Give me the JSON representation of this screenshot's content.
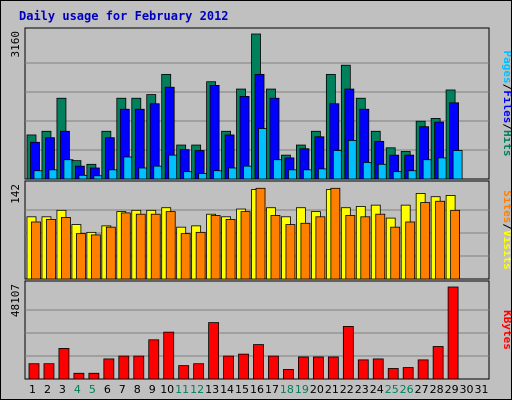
{
  "chart_data": {
    "type": "bar",
    "title": "Daily usage for February 2012",
    "categories": [
      "1",
      "2",
      "3",
      "4",
      "5",
      "6",
      "7",
      "8",
      "9",
      "10",
      "11",
      "12",
      "13",
      "14",
      "15",
      "16",
      "17",
      "18",
      "19",
      "20",
      "21",
      "22",
      "23",
      "24",
      "25",
      "26",
      "27",
      "28",
      "29",
      "30",
      "31"
    ],
    "weekend_days": [
      "4",
      "5",
      "11",
      "12",
      "18",
      "19",
      "25",
      "26"
    ],
    "panels": [
      {
        "name": "hits-files-pages",
        "ymax_label": "3160",
        "ylim": [
          0,
          3160
        ],
        "grid": true,
        "legend": [
          "Pages",
          "Files",
          "Hits"
        ],
        "series": [
          {
            "name": "Hits",
            "color": "#00805c",
            "values": [
              960,
              1040,
              1760,
              400,
              320,
              1040,
              1760,
              1760,
              1840,
              2280,
              740,
              740,
              2120,
              1040,
              1960,
              3160,
              1960,
              520,
              740,
              1040,
              2280,
              2480,
              1760,
              1040,
              680,
              600,
              1260,
              1320,
              1940,
              null,
              null
            ]
          },
          {
            "name": "Files",
            "color": "#0000ff",
            "values": [
              800,
              900,
              1040,
              280,
              240,
              900,
              1520,
              1520,
              1640,
              2000,
              640,
              620,
              2040,
              960,
              1800,
              2280,
              1760,
              460,
              660,
              920,
              1640,
              1960,
              1520,
              820,
              520,
              520,
              1140,
              1240,
              1660,
              null,
              null
            ]
          },
          {
            "name": "Pages",
            "color": "#00c0ff",
            "values": [
              180,
              200,
              420,
              80,
              70,
              200,
              480,
              240,
              280,
              520,
              160,
              120,
              180,
              240,
              280,
              1100,
              420,
              200,
              200,
              220,
              620,
              840,
              360,
              320,
              160,
              180,
              420,
              460,
              620,
              null,
              null
            ]
          }
        ]
      },
      {
        "name": "visits-sites",
        "ymax_label": "142",
        "ylim": [
          0,
          142
        ],
        "grid": true,
        "legend": [
          "Sites",
          "Visits"
        ],
        "series": [
          {
            "name": "Visits",
            "color": "#ffff00",
            "values": [
              96,
              96,
              106,
              84,
              72,
              82,
              104,
              106,
              106,
              110,
              80,
              82,
              100,
              96,
              108,
              138,
              110,
              96,
              110,
              104,
              138,
              110,
              112,
              114,
              94,
              114,
              132,
              127,
              129,
              null,
              null
            ]
          },
          {
            "name": "Sites",
            "color": "#ff8000",
            "values": [
              88,
              92,
              95,
              70,
              68,
              80,
              102,
              100,
              100,
              104,
              70,
              72,
              98,
              92,
              104,
              140,
              98,
              84,
              86,
              96,
              140,
              98,
              96,
              100,
              80,
              88,
              118,
              120,
              106,
              null,
              null
            ]
          }
        ]
      },
      {
        "name": "kbytes",
        "ymax_label": "48107",
        "ylim": [
          0,
          48107
        ],
        "grid": true,
        "legend": [
          "KBytes"
        ],
        "series": [
          {
            "name": "KBytes",
            "color": "#ff0000",
            "values": [
              8000,
              8000,
              16000,
              3000,
              3000,
              10500,
              12000,
              12000,
              20500,
              24500,
              7000,
              8000,
              29500,
              12000,
              13000,
              18000,
              12000,
              5000,
              11500,
              11500,
              11500,
              27500,
              10000,
              10500,
              5500,
              6000,
              10000,
              17000,
              48107,
              null,
              null
            ]
          }
        ]
      }
    ]
  }
}
